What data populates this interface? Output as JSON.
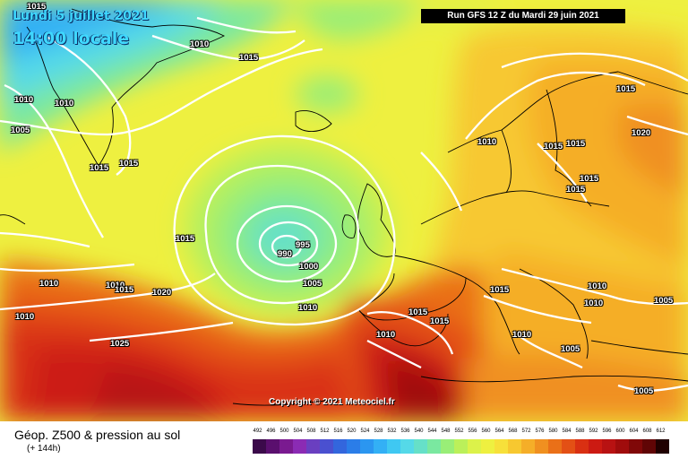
{
  "header": {
    "date": "Lundi 5 juillet 2021",
    "local_time": "14:00 locale",
    "run": "Run GFS 12 Z du Mardi 29 juin 2021"
  },
  "copyright": "Copyright © 2021 Meteociel.fr",
  "footer": {
    "title": "Géop. Z500 & pression au sol",
    "forecast_hours": "(+ 144h)"
  },
  "scale": {
    "labels": [
      "492",
      "496",
      "500",
      "504",
      "508",
      "512",
      "516",
      "520",
      "524",
      "528",
      "532",
      "536",
      "540",
      "544",
      "548",
      "552",
      "556",
      "560",
      "564",
      "568",
      "572",
      "576",
      "580",
      "584",
      "588",
      "592",
      "596",
      "600",
      "604",
      "608",
      "612"
    ],
    "colors": [
      "#3b0a4a",
      "#5a0f6e",
      "#7a1a90",
      "#8b2bb4",
      "#6a3fc0",
      "#4a50d0",
      "#3366dd",
      "#2b7de8",
      "#2b96f0",
      "#33b0f5",
      "#3fc8f2",
      "#55d9e8",
      "#66e0c8",
      "#7ae8a0",
      "#99ee77",
      "#bbf05a",
      "#dcf24a",
      "#eef040",
      "#f7e03a",
      "#f7c830",
      "#f5ae28",
      "#f09020",
      "#ea7018",
      "#e35015",
      "#d93012",
      "#cc1a12",
      "#b81212",
      "#a00c0c",
      "#800808",
      "#600505",
      "#200000"
    ]
  },
  "isobar_labels": [
    "1015",
    "1010",
    "1015",
    "1010",
    "1005",
    "1015",
    "1015",
    "1015",
    "1015",
    "1010",
    "1015",
    "1015",
    "1020",
    "1015",
    "1015",
    "1010",
    "1010",
    "990",
    "995",
    "1000",
    "1005",
    "1010",
    "1015",
    "1015",
    "1010",
    "1010",
    "1010",
    "1005",
    "1015",
    "1010",
    "1005",
    "1025",
    "1020",
    "1010",
    "1010",
    "1005",
    "1015",
    "1015"
  ]
}
